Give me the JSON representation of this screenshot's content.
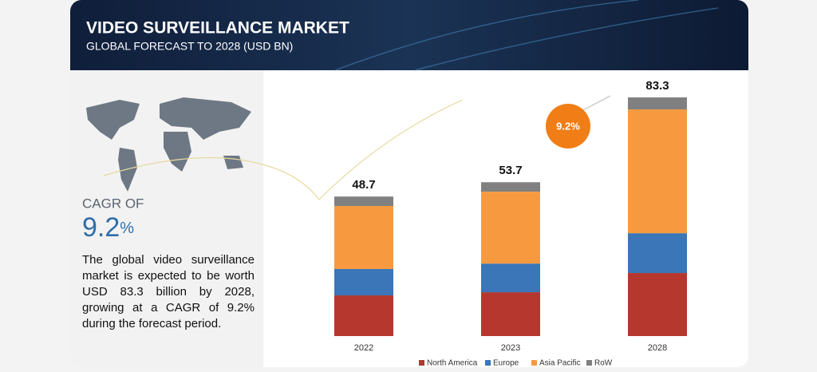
{
  "header": {
    "title": "VIDEO SURVEILLANCE MARKET",
    "subtitle": "GLOBAL FORECAST TO 2028 (USD BN)"
  },
  "sidebar": {
    "cagr_label": "CAGR OF",
    "cagr_value": "9.2",
    "cagr_unit": "%",
    "description": "The global video surveillance market is expected to be worth USD 83.3 billion by 2028, growing at a CAGR of 9.2% during the forecast period."
  },
  "chart_data": {
    "type": "stacked-bar",
    "categories": [
      "2022",
      "2023",
      "2028"
    ],
    "series": [
      {
        "name": "North America",
        "color": "#b5372e",
        "values": [
          14.2,
          15.3,
          22.0
        ]
      },
      {
        "name": "Europe",
        "color": "#3a76b8",
        "values": [
          9.2,
          10.0,
          13.9
        ]
      },
      {
        "name": "Asia Pacific",
        "color": "#f79a3f",
        "values": [
          22.0,
          25.1,
          43.2
        ]
      },
      {
        "name": "RoW",
        "color": "#808080",
        "values": [
          3.3,
          3.3,
          4.2
        ]
      }
    ],
    "totals": [
      48.7,
      53.7,
      83.3
    ],
    "cagr_badge": "9.2%",
    "legend": "bottom"
  }
}
